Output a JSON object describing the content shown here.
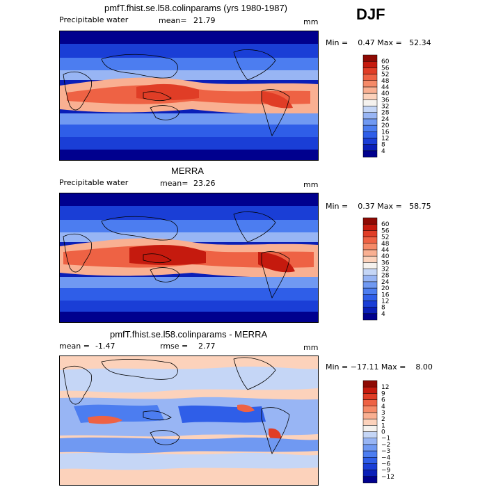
{
  "season": "DJF",
  "panels": [
    {
      "title": "pmfT.fhist.se.l58.colinparams (yrs 1980-1987)",
      "subtitle_left": "Precipitable water",
      "mean_label": "mean=",
      "mean_value": "21.79",
      "units": "mm",
      "range_text": "Min =    0.47 Max =   52.34"
    },
    {
      "title": "MERRA",
      "subtitle_left": "Precipitable water",
      "mean_label": "mean=",
      "mean_value": "23.26",
      "units": "mm",
      "range_text": "Min =    0.37 Max =   58.75"
    },
    {
      "title": "pmfT.fhist.se.l58.colinparams - MERRA",
      "mean_label": "mean =",
      "mean_value": "-1.47",
      "rmse_label": "rmse =",
      "rmse_value": "2.77",
      "units": "mm",
      "range_text": "Min = −17.11 Max =    8.00"
    }
  ],
  "chart_data": [
    {
      "type": "heatmap",
      "title": "pmfT.fhist.se.l58.colinparams (yrs 1980-1987)",
      "variable": "Precipitable water",
      "units": "mm",
      "mean": 21.79,
      "min": 0.47,
      "max": 52.34,
      "colorbar_levels": [
        4,
        8,
        12,
        16,
        20,
        24,
        28,
        32,
        36,
        40,
        44,
        48,
        52,
        56,
        60
      ],
      "colorbar_colors": [
        "#00008e",
        "#0a1fb8",
        "#1a3ed6",
        "#2f5ee8",
        "#4c7df0",
        "#7099f2",
        "#98b5f4",
        "#c5d6f6",
        "#f5f2ee",
        "#fcd2bb",
        "#f9b092",
        "#f58a68",
        "#ee6244",
        "#e03d26",
        "#c51a0e",
        "#8e0a04"
      ]
    },
    {
      "type": "heatmap",
      "title": "MERRA",
      "variable": "Precipitable water",
      "units": "mm",
      "mean": 23.26,
      "min": 0.37,
      "max": 58.75,
      "colorbar_levels": [
        4,
        8,
        12,
        16,
        20,
        24,
        28,
        32,
        36,
        40,
        44,
        48,
        52,
        56,
        60
      ],
      "colorbar_colors": [
        "#00008e",
        "#0a1fb8",
        "#1a3ed6",
        "#2f5ee8",
        "#4c7df0",
        "#7099f2",
        "#98b5f4",
        "#c5d6f6",
        "#f5f2ee",
        "#fcd2bb",
        "#f9b092",
        "#f58a68",
        "#ee6244",
        "#e03d26",
        "#c51a0e",
        "#8e0a04"
      ]
    },
    {
      "type": "heatmap",
      "title": "pmfT.fhist.se.l58.colinparams - MERRA",
      "units": "mm",
      "mean": -1.47,
      "rmse": 2.77,
      "min": -17.11,
      "max": 8.0,
      "colorbar_levels": [
        "−12",
        "−9",
        "−6",
        "−4",
        "−3",
        "−2",
        "−1",
        "0",
        "1",
        "2",
        "3",
        "4",
        "6",
        "9",
        "12"
      ],
      "colorbar_colors": [
        "#00008e",
        "#0a1fb8",
        "#1a3ed6",
        "#2f5ee8",
        "#4c7df0",
        "#7099f2",
        "#98b5f4",
        "#c5d6f6",
        "#f5f2ee",
        "#fcd2bb",
        "#f9b092",
        "#f58a68",
        "#ee6244",
        "#e03d26",
        "#c51a0e",
        "#8e0a04"
      ]
    }
  ]
}
